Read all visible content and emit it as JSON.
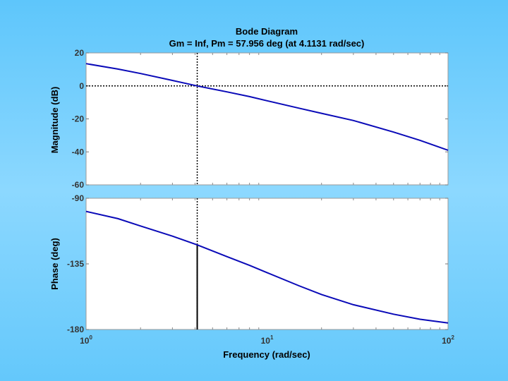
{
  "chart_data": [
    {
      "type": "line",
      "panel": "magnitude",
      "title": "Bode Diagram",
      "subtitle": "Gm = Inf,  Pm = 57.956 deg (at 4.1131 rad/sec)",
      "ylabel": "Magnitude (dB)",
      "xscale": "log",
      "xlim": [
        1,
        100
      ],
      "ylim": [
        -60,
        20
      ],
      "yticks": [
        20,
        0,
        -20,
        -40,
        -60
      ],
      "grid": false,
      "series": [
        {
          "x": [
            1,
            1.5,
            2,
            3,
            4.1131,
            6,
            8,
            10,
            15,
            20,
            30,
            50,
            70,
            100
          ],
          "values": [
            13.5,
            10.2,
            7.5,
            3.3,
            0,
            -3.6,
            -6.5,
            -9.0,
            -13.5,
            -16.6,
            -21.0,
            -28.0,
            -33.0,
            -39.0
          ]
        }
      ],
      "reference_lines": {
        "y": 0,
        "x": 4.1131,
        "style": "dotted"
      },
      "line_color": "#0a0ab8"
    },
    {
      "type": "line",
      "panel": "phase",
      "ylabel": "Phase (deg)",
      "xlabel": "Frequency (rad/sec)",
      "xscale": "log",
      "xlim": [
        1,
        100
      ],
      "ylim": [
        -180,
        -90
      ],
      "yticks": [
        -90,
        -135,
        -180
      ],
      "xticks": [
        1,
        10,
        100
      ],
      "xtick_labels": [
        [
          "10",
          "0"
        ],
        [
          "10",
          "1"
        ],
        [
          "10",
          "2"
        ]
      ],
      "grid": false,
      "series": [
        {
          "x": [
            1,
            1.5,
            2,
            3,
            4.1131,
            6,
            8,
            10,
            15,
            20,
            30,
            50,
            70,
            100
          ],
          "values": [
            -99,
            -104,
            -109,
            -116,
            -122,
            -130,
            -136,
            -141,
            -150,
            -156,
            -163,
            -169.5,
            -173,
            -175.5
          ]
        }
      ],
      "reference_lines": {
        "x": 4.1131,
        "style": "dotted"
      },
      "margin_marker": {
        "x": 4.1131,
        "from": -122,
        "to": -180
      },
      "line_color": "#0a0ab8"
    }
  ]
}
